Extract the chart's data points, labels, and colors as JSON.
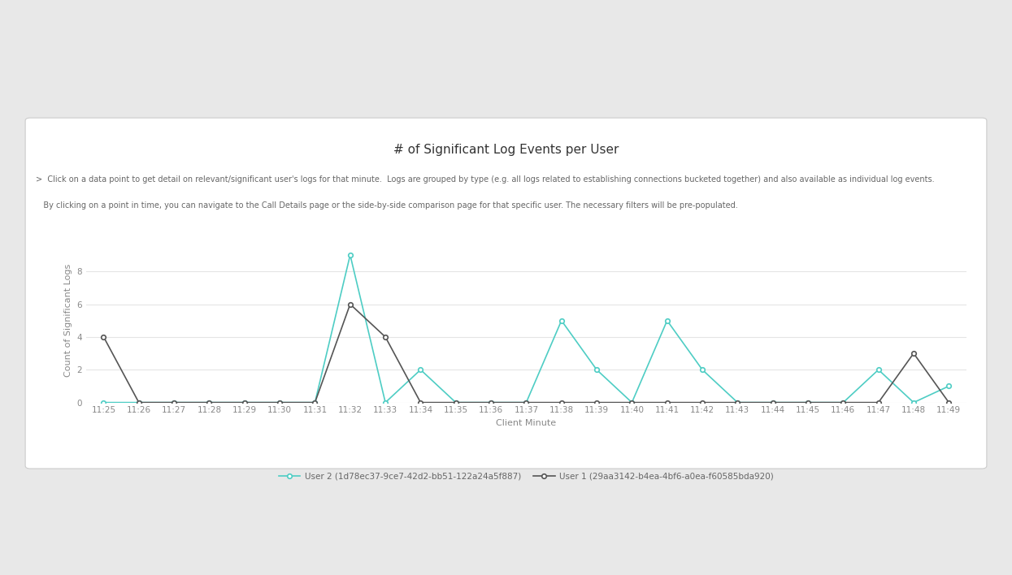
{
  "title": "# of Significant Log Events per User",
  "subtitle1": ">  Click on a data point to get detail on relevant/significant user's logs for that minute.  Logs are grouped by type (e.g. all logs related to establishing connections bucketed together) and also available as individual log events.",
  "subtitle2": "   By clicking on a point in time, you can navigate to the Call Details page or the side-by-side comparison page for that specific user. The necessary filters will be pre-populated.",
  "xlabel": "Client Minute",
  "ylabel": "Count of Significant Logs",
  "x_labels": [
    "11:25",
    "11:26",
    "11:27",
    "11:28",
    "11:29",
    "11:30",
    "11:31",
    "11:32",
    "11:33",
    "11:34",
    "11:35",
    "11:36",
    "11:37",
    "11:38",
    "11:39",
    "11:40",
    "11:41",
    "11:42",
    "11:43",
    "11:44",
    "11:45",
    "11:46",
    "11:47",
    "11:48",
    "11:49"
  ],
  "user2_values": [
    0,
    0,
    0,
    0,
    0,
    0,
    0,
    9,
    0,
    2,
    0,
    0,
    0,
    5,
    2,
    0,
    5,
    2,
    0,
    0,
    0,
    0,
    2,
    0,
    1
  ],
  "user1_values": [
    4,
    0,
    0,
    0,
    0,
    0,
    0,
    6,
    4,
    0,
    0,
    0,
    0,
    0,
    0,
    0,
    0,
    0,
    0,
    0,
    0,
    0,
    0,
    3,
    0
  ],
  "user2_color": "#4ECDC4",
  "user1_color": "#555555",
  "user2_label": "User 2 (1d78ec37-9ce7-42d2-bb51-122a24a5f887)",
  "user1_label": "User 1 (29aa3142-b4ea-4bf6-a0ea-f60585bda920)",
  "outer_bg_color": "#e8e8e8",
  "card_bg_color": "#ffffff",
  "grid_color": "#e5e5e5",
  "title_color": "#333333",
  "subtitle_color": "#666666",
  "axis_color": "#888888",
  "ylim": [
    0,
    10
  ],
  "yticks": [
    0,
    2,
    4,
    6,
    8
  ],
  "title_fontsize": 11,
  "subtitle_fontsize": 7,
  "axis_label_fontsize": 8,
  "tick_fontsize": 7.5,
  "legend_fontsize": 7.5
}
